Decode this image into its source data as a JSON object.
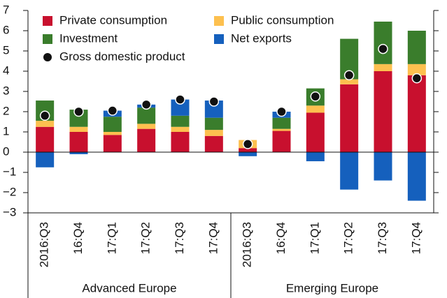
{
  "chart_data": {
    "type": "stacked-bar",
    "groups": [
      {
        "label": "Advanced Europe",
        "categories": [
          "2016:Q3",
          "16:Q4",
          "17:Q1",
          "17:Q2",
          "17:Q3",
          "17:Q4"
        ]
      },
      {
        "label": "Emerging Europe",
        "categories": [
          "2016:Q3",
          "16:Q4",
          "17:Q1",
          "17:Q2",
          "17:Q3",
          "17:Q4"
        ]
      }
    ],
    "series": [
      {
        "name": "Private consumption",
        "color": "#c8102e",
        "values": [
          1.25,
          1.0,
          0.85,
          1.15,
          1.0,
          0.8,
          0.2,
          1.05,
          1.95,
          3.35,
          4.0,
          3.8
        ]
      },
      {
        "name": "Public consumption",
        "color": "#fdc04f",
        "values": [
          0.3,
          0.25,
          0.15,
          0.25,
          0.25,
          0.3,
          0.4,
          0.1,
          0.35,
          0.25,
          0.35,
          0.55
        ]
      },
      {
        "name": "Investment",
        "color": "#3a7d2c",
        "values": [
          1.0,
          0.85,
          0.75,
          0.8,
          0.55,
          0.6,
          0,
          0.55,
          0.85,
          2.0,
          2.1,
          1.65
        ]
      },
      {
        "name": "Net exports",
        "color": "#1560bd",
        "values": [
          -0.75,
          -0.1,
          0.3,
          0.15,
          0.8,
          0.85,
          -0.2,
          0.3,
          -0.45,
          -1.85,
          -1.4,
          -2.4
        ]
      }
    ],
    "points": {
      "name": "Gross domestic product",
      "color": "#111111",
      "values": [
        1.8,
        2.0,
        2.05,
        2.35,
        2.6,
        2.5,
        0.4,
        2.0,
        2.75,
        3.8,
        5.1,
        3.65
      ]
    },
    "ylim": [
      -3,
      7
    ],
    "yticks": [
      {
        "value": -3,
        "label": "−3"
      },
      {
        "value": -2,
        "label": "−2"
      },
      {
        "value": -1,
        "label": "−1"
      },
      0,
      1,
      2,
      3,
      4,
      5,
      6,
      7
    ]
  }
}
